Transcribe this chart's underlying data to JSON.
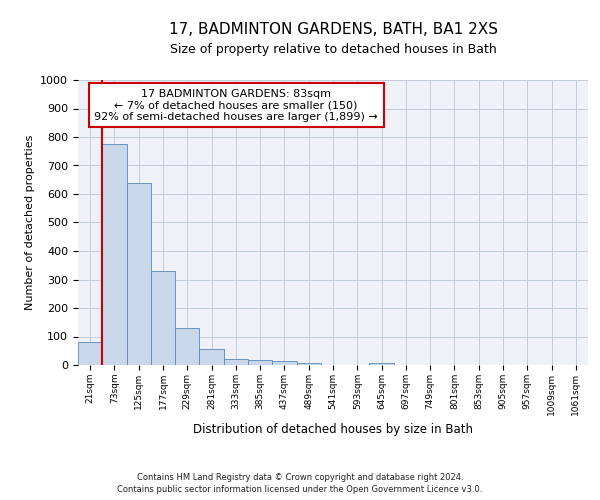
{
  "title": "17, BADMINTON GARDENS, BATH, BA1 2XS",
  "subtitle": "Size of property relative to detached houses in Bath",
  "xlabel": "Distribution of detached houses by size in Bath",
  "ylabel": "Number of detached properties",
  "categories": [
    "21sqm",
    "73sqm",
    "125sqm",
    "177sqm",
    "229sqm",
    "281sqm",
    "333sqm",
    "385sqm",
    "437sqm",
    "489sqm",
    "541sqm",
    "593sqm",
    "645sqm",
    "697sqm",
    "749sqm",
    "801sqm",
    "853sqm",
    "905sqm",
    "957sqm",
    "1009sqm",
    "1061sqm"
  ],
  "values": [
    80,
    775,
    640,
    330,
    130,
    55,
    22,
    18,
    13,
    8,
    0,
    0,
    8,
    0,
    0,
    0,
    0,
    0,
    0,
    0,
    0
  ],
  "bar_color": "#c8d8ea",
  "bar_edge_color": "#5a8ab8",
  "highlight_color": "#cc0000",
  "highlight_bar_index": 1,
  "annotation_line1": "17 BADMINTON GARDENS: 83sqm",
  "annotation_line2": "← 7% of detached houses are smaller (150)",
  "annotation_line3": "92% of semi-detached houses are larger (1,899) →",
  "annotation_box_color": "#cc0000",
  "ylim": [
    0,
    1000
  ],
  "yticks": [
    0,
    100,
    200,
    300,
    400,
    500,
    600,
    700,
    800,
    900,
    1000
  ],
  "grid_color": "#c0ccd8",
  "footer_line1": "Contains HM Land Registry data © Crown copyright and database right 2024.",
  "footer_line2": "Contains public sector information licensed under the Open Government Licence v3.0.",
  "bg_color": "#eef2f8",
  "fig_bg": "#ffffff"
}
